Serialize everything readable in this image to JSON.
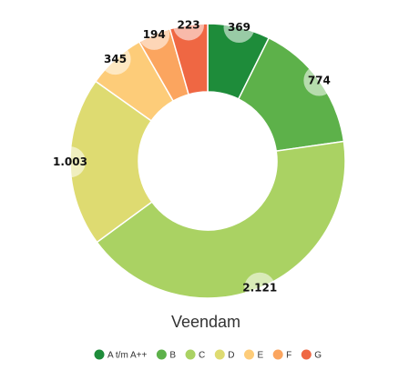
{
  "chart_data": {
    "type": "pie",
    "variant": "donut",
    "title": "Veendam",
    "slices": [
      {
        "category": "A t/m A++",
        "value": 369,
        "label": "369",
        "color": "#1e8c3a"
      },
      {
        "category": "B",
        "value": 774,
        "label": "774",
        "color": "#5db14a"
      },
      {
        "category": "C",
        "value": 2121,
        "label": "2.121",
        "color": "#aad263"
      },
      {
        "category": "D",
        "value": 1003,
        "label": "1.003",
        "color": "#dedb71"
      },
      {
        "category": "E",
        "value": 345,
        "label": "345",
        "color": "#fdcc79"
      },
      {
        "category": "F",
        "value": 194,
        "label": "194",
        "color": "#fba55f"
      },
      {
        "category": "G",
        "value": 223,
        "label": "223",
        "color": "#ef6743"
      }
    ],
    "legend_placement": "bottom"
  }
}
